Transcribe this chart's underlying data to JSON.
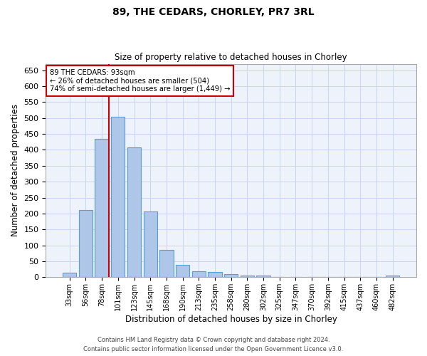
{
  "title1": "89, THE CEDARS, CHORLEY, PR7 3RL",
  "title2": "Size of property relative to detached houses in Chorley",
  "xlabel": "Distribution of detached houses by size in Chorley",
  "ylabel": "Number of detached properties",
  "categories": [
    "33sqm",
    "56sqm",
    "78sqm",
    "101sqm",
    "123sqm",
    "145sqm",
    "168sqm",
    "190sqm",
    "213sqm",
    "235sqm",
    "258sqm",
    "280sqm",
    "302sqm",
    "325sqm",
    "347sqm",
    "370sqm",
    "392sqm",
    "415sqm",
    "437sqm",
    "460sqm",
    "482sqm"
  ],
  "values": [
    15,
    212,
    435,
    503,
    407,
    207,
    86,
    39,
    18,
    17,
    11,
    6,
    5,
    2,
    1,
    1,
    1,
    0,
    0,
    0,
    5
  ],
  "bar_color": "#aec6e8",
  "bar_edge_color": "#5a9fd4",
  "annotation_text": "89 THE CEDARS: 93sqm\n← 26% of detached houses are smaller (504)\n74% of semi-detached houses are larger (1,449) →",
  "annotation_box_color": "#ffffff",
  "annotation_box_edge_color": "#cc0000",
  "vline_color": "#cc0000",
  "ylim": [
    0,
    670
  ],
  "yticks": [
    0,
    50,
    100,
    150,
    200,
    250,
    300,
    350,
    400,
    450,
    500,
    550,
    600,
    650
  ],
  "footer1": "Contains HM Land Registry data © Crown copyright and database right 2024.",
  "footer2": "Contains public sector information licensed under the Open Government Licence v3.0.",
  "bg_color": "#eef2fb",
  "grid_color": "#c8d4ee"
}
